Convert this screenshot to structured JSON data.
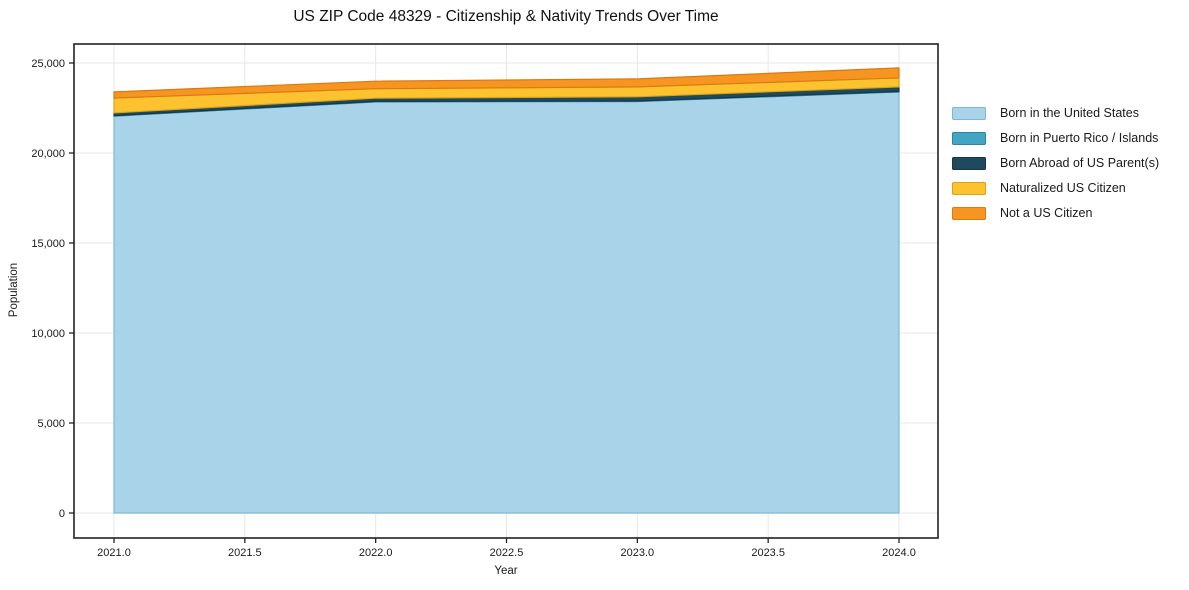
{
  "chart_data": {
    "type": "area",
    "stacked": true,
    "title": "US ZIP Code 48329 - Citizenship & Nativity Trends Over Time",
    "xlabel": "Year",
    "ylabel": "Population",
    "x": [
      2021,
      2022,
      2023,
      2024
    ],
    "series": [
      {
        "name": "Born in the United States",
        "color": "#a8d3e8",
        "edge": "#7fb8d6",
        "values": [
          22050,
          22840,
          22860,
          23390
        ]
      },
      {
        "name": "Born in Puerto Rico / Islands",
        "color": "#41a6c4",
        "edge": "#2e85a3",
        "values": [
          25,
          25,
          30,
          35
        ]
      },
      {
        "name": "Born Abroad of US Parent(s)",
        "color": "#1f4a5e",
        "edge": "#16374a",
        "values": [
          150,
          180,
          230,
          250
        ]
      },
      {
        "name": "Naturalized US Citizen",
        "color": "#fdc230",
        "edge": "#dba414",
        "values": [
          830,
          525,
          550,
          495
        ]
      },
      {
        "name": "Not a US Citizen",
        "color": "#f79522",
        "edge": "#d97b10",
        "values": [
          340,
          420,
          445,
          555
        ]
      }
    ],
    "x_tick_values": [
      2021.0,
      2021.5,
      2022.0,
      2022.5,
      2023.0,
      2023.5,
      2024.0
    ],
    "x_tick_labels": [
      "2021.0",
      "2021.5",
      "2022.0",
      "2022.5",
      "2023.0",
      "2023.5",
      "2024.0"
    ],
    "y_tick_values": [
      0,
      5000,
      10000,
      15000,
      20000,
      25000
    ],
    "y_tick_labels": [
      "0",
      "5,000",
      "10,000",
      "15,000",
      "20,000",
      "25,000"
    ],
    "ylim": [
      0,
      25000
    ],
    "grid": true,
    "legend_position": "right",
    "grid_color": "#e7e7e7",
    "border_color": "#222222",
    "tick_color": "#222222",
    "label_color": "#1a1a1a"
  }
}
